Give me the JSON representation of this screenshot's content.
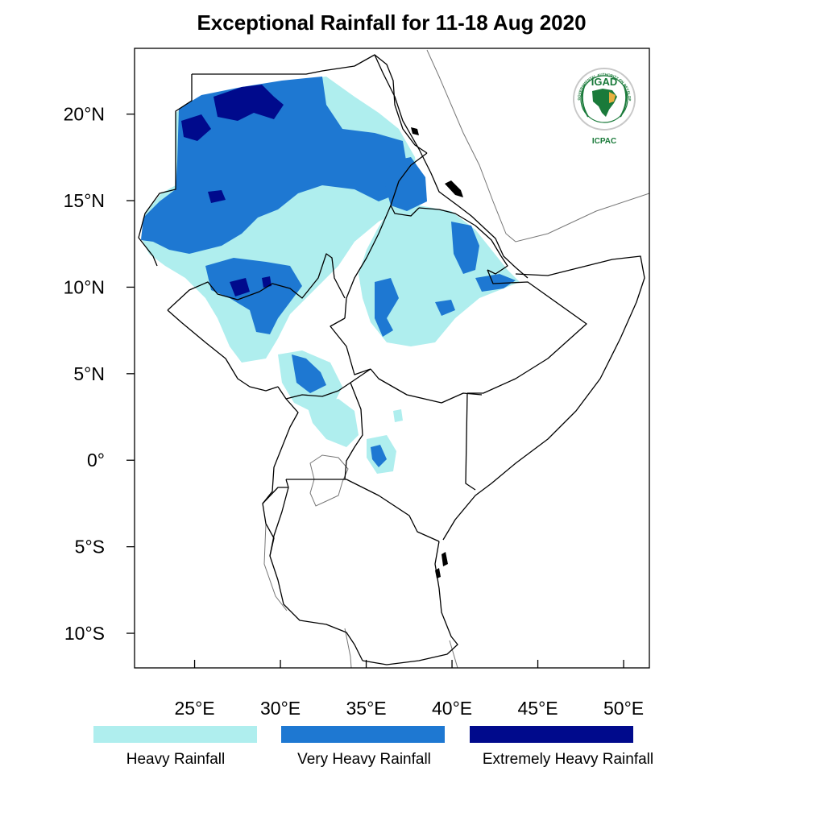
{
  "title": "Exceptional Rainfall for 11-18 Aug 2020",
  "map": {
    "lon_range": [
      21.5,
      51.5
    ],
    "lat_range": [
      -12,
      23.8
    ],
    "x_ticks": [
      {
        "lon": 25,
        "label": "25°E"
      },
      {
        "lon": 30,
        "label": "30°E"
      },
      {
        "lon": 35,
        "label": "35°E"
      },
      {
        "lon": 40,
        "label": "40°E"
      },
      {
        "lon": 45,
        "label": "45°E"
      },
      {
        "lon": 50,
        "label": "50°E"
      }
    ],
    "y_ticks": [
      {
        "lat": 20,
        "label": "20°N"
      },
      {
        "lat": 15,
        "label": "15°N"
      },
      {
        "lat": 10,
        "label": "10°N"
      },
      {
        "lat": 5,
        "label": "5°N"
      },
      {
        "lat": 0,
        "label": "0°"
      },
      {
        "lat": -5,
        "label": "5°S"
      },
      {
        "lat": -10,
        "label": "10°S"
      }
    ]
  },
  "legend": [
    {
      "label": "Heavy Rainfall",
      "color": "#afeeee"
    },
    {
      "label": "Very Heavy Rainfall",
      "color": "#1e78d2"
    },
    {
      "label": "Extremely Heavy Rainfall",
      "color": "#000a8c"
    }
  ],
  "logo": {
    "top_text": "IGAD",
    "bottom_text": "ICPAC",
    "ring_text": "INTERGOVERNMENTAL AUTHORITY ON DEVELOPMENT",
    "color": "#1a7a3a"
  }
}
